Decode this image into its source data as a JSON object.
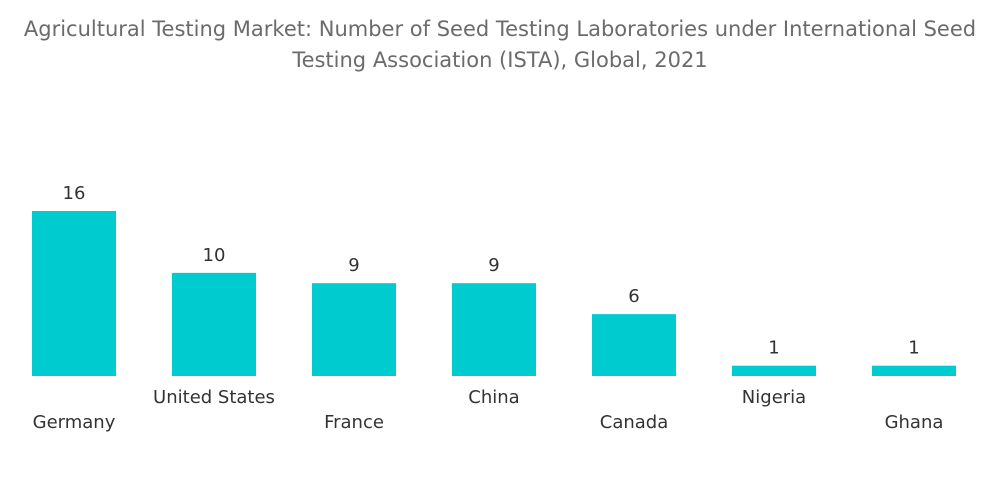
{
  "chart_data": {
    "type": "bar",
    "title_lines": [
      "Agricultural Testing Market: Number of Seed Testing Laboratories under International Seed",
      "Testing Association (ISTA), Global, 2021"
    ],
    "categories": [
      "Germany",
      "United States",
      "France",
      "China",
      "Canada",
      "Nigeria",
      "Ghana"
    ],
    "values": [
      16,
      10,
      9,
      9,
      6,
      1,
      1
    ],
    "xlabel": "",
    "ylabel": "",
    "ylim": [
      0,
      16
    ],
    "grid": false,
    "legend": "none",
    "bar_color": "#00cccf"
  }
}
